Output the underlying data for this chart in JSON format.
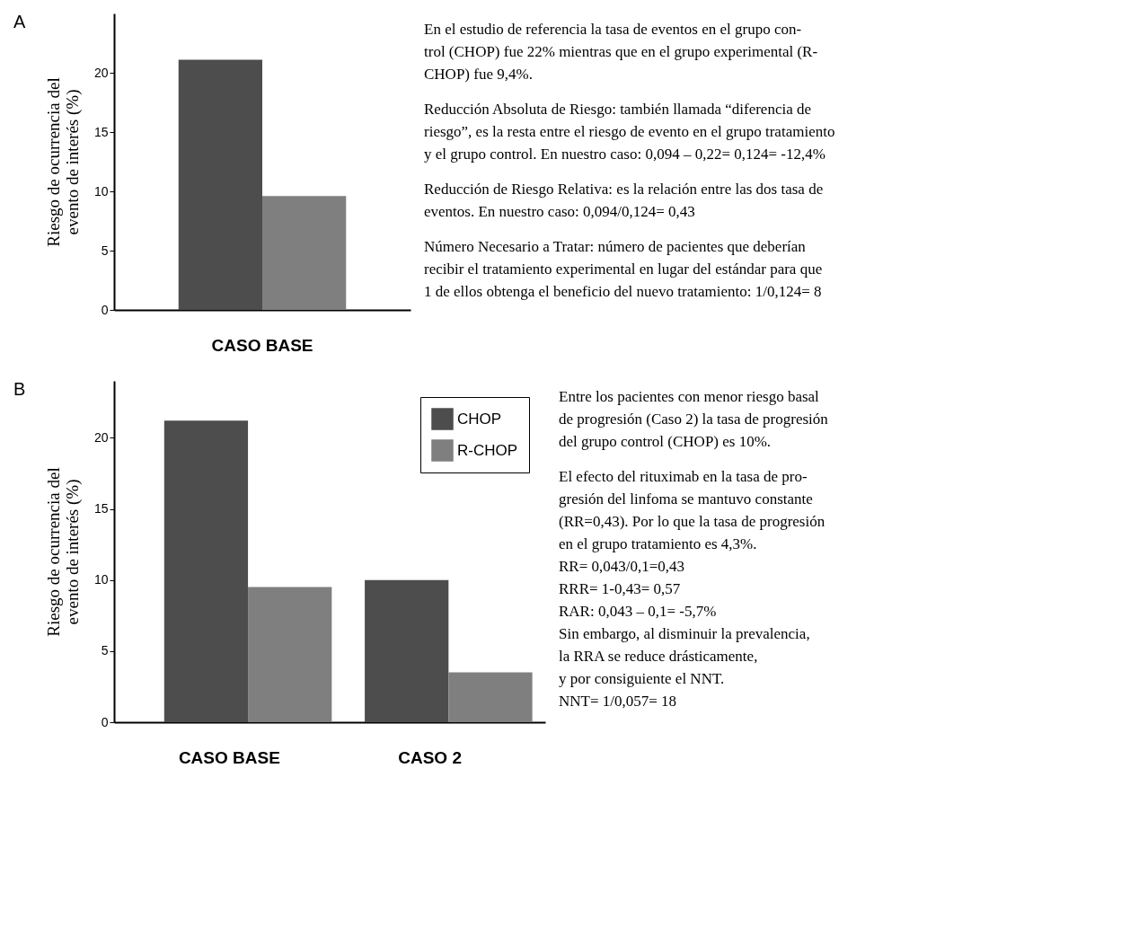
{
  "chart_data": [
    {
      "type": "bar",
      "categories": [
        "CASO BASE"
      ],
      "ylabel": "Riesgo de ocurrencia del\nevento de interés (%)",
      "ylim": [
        0,
        25
      ],
      "yticks": [
        0,
        5,
        10,
        15,
        20
      ],
      "grid": false,
      "series": [
        {
          "color": "#4d4d4d",
          "values": [
            21.1
          ]
        },
        {
          "color": "#7f7f7f",
          "values": [
            9.6
          ]
        }
      ],
      "annotations": [
        "A",
        "En el estudio de referencia la tasa de eventos en el grupo con-\ntrol (CHOP) fue 22% mientras que en el grupo experimental (R-\nCHOP) fue 9,4%.",
        "Reducción Absoluta de Riesgo: también llamada “diferencia de\nriesgo”, es la resta entre el riesgo de evento en el grupo tratamiento\ny el grupo control. En nuestro caso: 0,094 – 0,22= 0,124= -12,4%",
        "Reducción de Riesgo Relativa: es la relación entre las dos tasa de\neventos. En nuestro caso: 0,094/0,124= 0,43",
        "Número Necesario a Tratar: número de pacientes que deberían\nrecibir el tratamiento experimental en lugar del estándar para que\n1 de ellos obtenga el beneficio del nuevo tratamiento: 1/0,124= 8"
      ]
    },
    {
      "type": "bar",
      "categories": [
        "CASO BASE",
        "CASO 2"
      ],
      "ylabel": "Riesgo de ocurrencia del\nevento de interés (%)",
      "ylim": [
        0,
        24
      ],
      "yticks": [
        0,
        5,
        10,
        15,
        20
      ],
      "grid": false,
      "legend": "top right",
      "series": [
        {
          "name": "CHOP",
          "color": "#4d4d4d",
          "values": [
            21.2,
            10
          ]
        },
        {
          "name": "R-CHOP",
          "color": "#7f7f7f",
          "values": [
            9.5,
            3.5
          ]
        }
      ],
      "annotations": [
        "B",
        "Entre los pacientes con menor riesgo basal\nde progresión (Caso 2) la tasa de progresión\ndel grupo control (CHOP) es 10%.",
        "El efecto del rituximab en la tasa de pro-\ngresión del linfoma se mantuvo constante\n(RR=0,43). Por lo que la tasa de progresión\nen el grupo tratamiento es 4,3%.\nRR= 0,043/0,1=0,43\nRRR= 1-0,43= 0,57\nRAR: 0,043 – 0,1= -5,7%\nSin embargo, al disminuir la prevalencia,\nla RRA se reduce drásticamente,\ny por consiguiente el NNT.\nNNT= 1/0,057= 18"
      ]
    }
  ]
}
